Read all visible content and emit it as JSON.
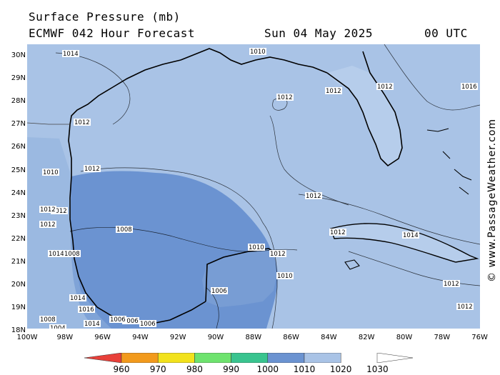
{
  "header": {
    "title": "Surface Pressure (mb)",
    "model": "ECMWF 042 Hour Forecast",
    "valid_date": "Sun 04 May 2025",
    "valid_time": "00 UTC"
  },
  "credit": "© www.PassageWeather.com",
  "axes": {
    "lat_labels": [
      "30N",
      "29N",
      "28N",
      "27N",
      "26N",
      "25N",
      "24N",
      "23N",
      "22N",
      "21N",
      "20N",
      "19N",
      "18N"
    ],
    "lon_labels": [
      "100W",
      "98W",
      "96W",
      "94W",
      "92W",
      "90W",
      "88W",
      "86W",
      "84W",
      "82W",
      "80W",
      "78W",
      "76W"
    ]
  },
  "isobar_labels": [
    {
      "text": "1014"
    },
    {
      "text": "1010"
    },
    {
      "text": "1012"
    },
    {
      "text": "1012"
    },
    {
      "text": "1012"
    },
    {
      "text": "1016"
    },
    {
      "text": "1012"
    },
    {
      "text": "1012"
    },
    {
      "text": "1010"
    },
    {
      "text": "1012"
    },
    {
      "text": "1014"
    },
    {
      "text": "1012"
    },
    {
      "text": "1012"
    },
    {
      "text": "1014"
    },
    {
      "text": "1008"
    },
    {
      "text": "1008"
    },
    {
      "text": "1006"
    },
    {
      "text": "1006"
    },
    {
      "text": "1010"
    },
    {
      "text": "1010"
    },
    {
      "text": "1006"
    },
    {
      "text": "1006"
    },
    {
      "text": "1012"
    },
    {
      "text": "1012"
    },
    {
      "text": "1012"
    },
    {
      "text": "1014"
    },
    {
      "text": "1016"
    },
    {
      "text": "1014"
    },
    {
      "text": "1004"
    },
    {
      "text": "1008"
    },
    {
      "text": "1012"
    },
    {
      "text": "1012"
    }
  ],
  "colorbar": {
    "labels": [
      "960",
      "970",
      "980",
      "990",
      "1000",
      "1010",
      "1020",
      "1030"
    ],
    "colors": [
      "#e8403a",
      "#f29a1c",
      "#f2e21c",
      "#6ee36e",
      "#39c48f",
      "#6b93d1",
      "#a9c3e6",
      "#dbe6f5"
    ]
  },
  "map_colors": {
    "pressure_1010_1020": "#a9c3e6",
    "pressure_1000_1010": "#6b93d1",
    "coastline": "#000000"
  }
}
